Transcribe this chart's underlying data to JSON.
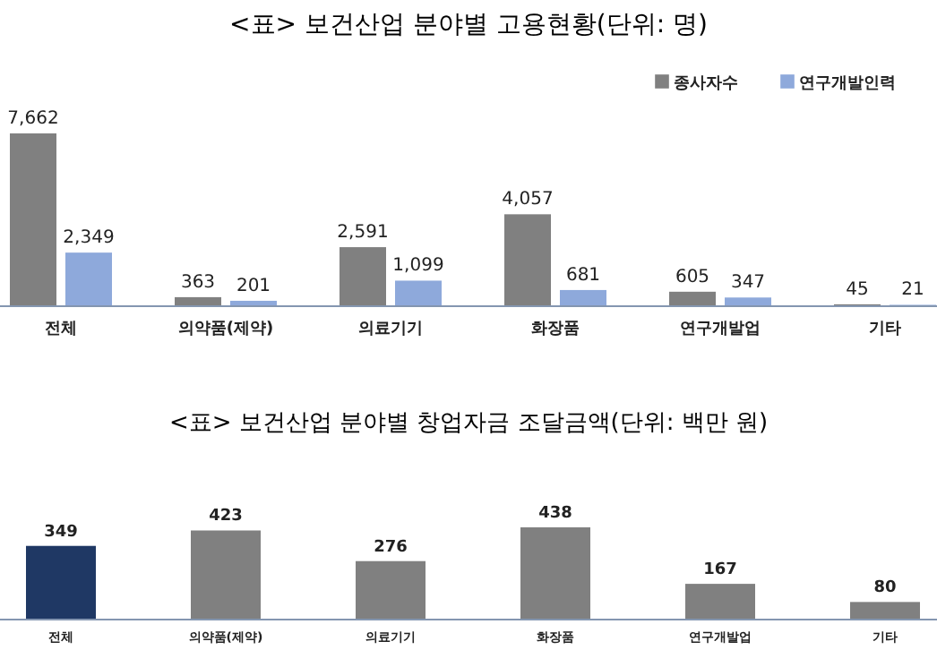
{
  "chart_data": [
    {
      "type": "bar",
      "title": "<표> 보건산업 분야별 고용현황(단위: 명)",
      "categories": [
        "전체",
        "의약품(제약)",
        "의료기기",
        "화장품",
        "연구개발업",
        "기타"
      ],
      "series": [
        {
          "name": "종사자수",
          "color": "#808080",
          "values": [
            7662,
            363,
            2591,
            4057,
            605,
            45
          ],
          "value_labels": [
            "7,662",
            "363",
            "2,591",
            "4,057",
            "605",
            "45"
          ]
        },
        {
          "name": "연구개발인력",
          "color": "#8ea9db",
          "values": [
            2349,
            201,
            1099,
            681,
            347,
            21
          ],
          "value_labels": [
            "2,349",
            "201",
            "1,099",
            "681",
            "347",
            "21"
          ]
        }
      ],
      "legend": "top right"
    },
    {
      "type": "bar",
      "title": "<표> 보건산업 분야별 창업자금 조달금액(단위: 백만 원)",
      "categories": [
        "전체",
        "의약품(제약)",
        "의료기기",
        "화장품",
        "연구개발업",
        "기타"
      ],
      "values": [
        349,
        423,
        276,
        438,
        167,
        80
      ],
      "colors": [
        "#1f3864",
        "#808080",
        "#808080",
        "#808080",
        "#808080",
        "#808080"
      ],
      "data_labels": true
    }
  ]
}
